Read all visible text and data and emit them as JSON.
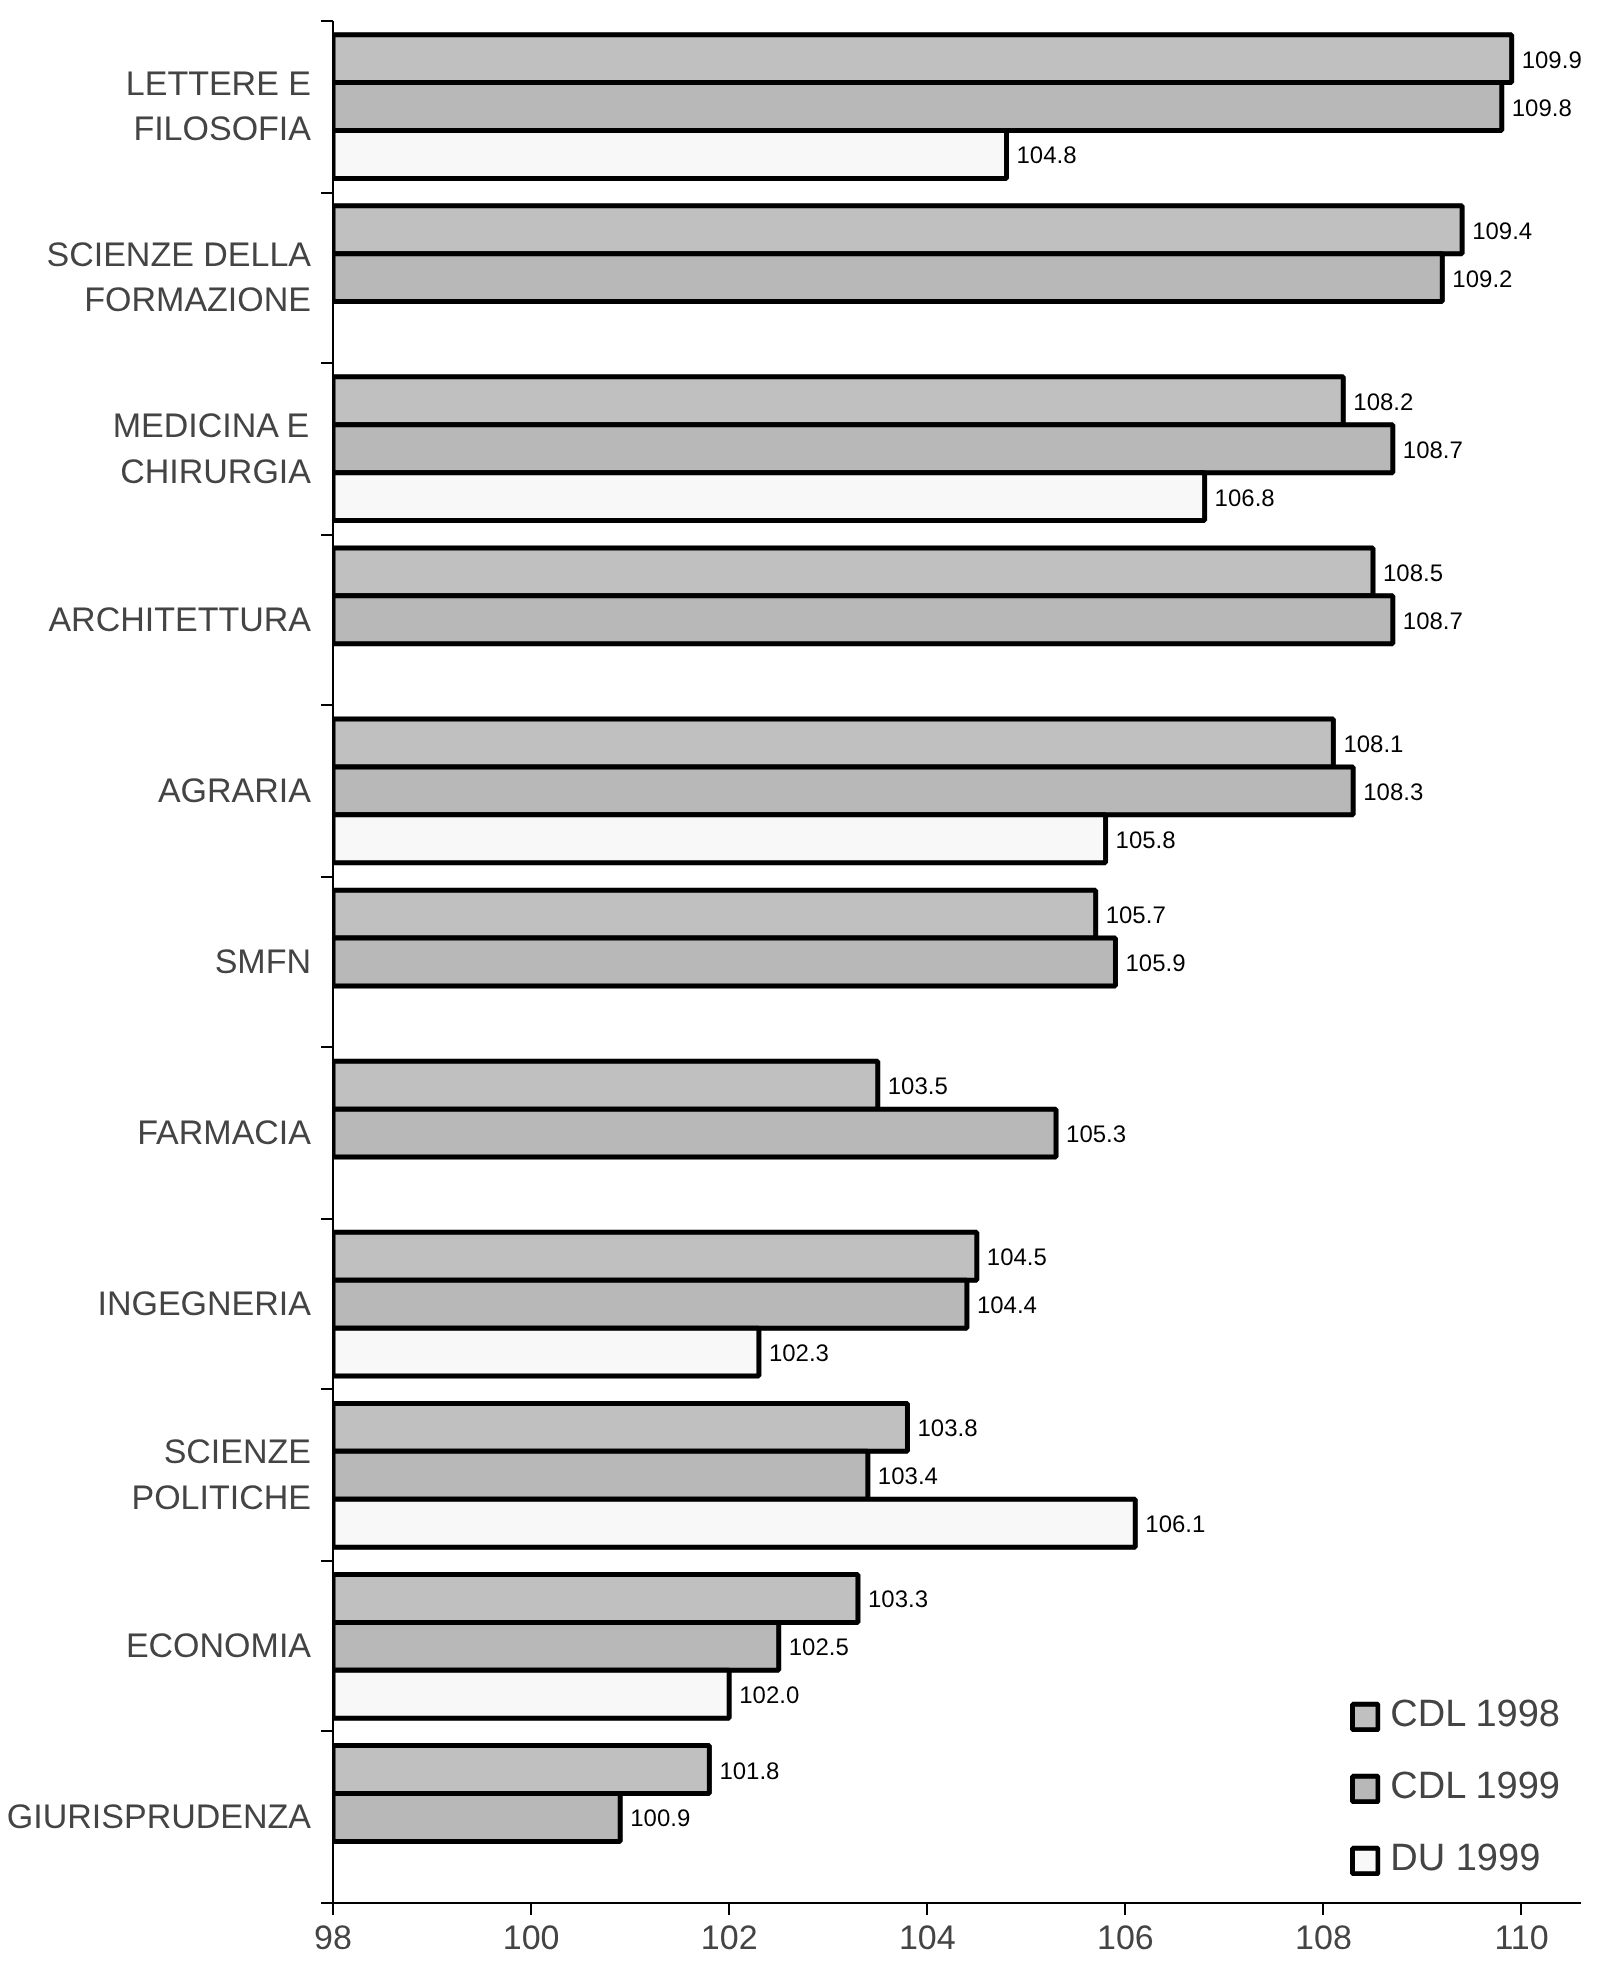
{
  "chart_data": {
    "type": "bar",
    "orientation": "horizontal",
    "categories": [
      "LETTERE E\nFILOSOFIA",
      "SCIENZE DELLA\nFORMAZIONE",
      "MEDICINA E\nCHIRURGIA",
      "ARCHITETTURA",
      "AGRARIA",
      "SMFN",
      "FARMACIA",
      "INGEGNERIA",
      "SCIENZE\nPOLITICHE",
      "ECONOMIA",
      "GIURISPRUDENZA"
    ],
    "series": [
      {
        "name": "CDL 1998",
        "color": "#c0c0c0",
        "values": [
          109.9,
          109.4,
          108.2,
          108.5,
          108.1,
          105.7,
          103.5,
          104.5,
          103.8,
          103.3,
          101.8
        ],
        "value_labels": [
          "109.9",
          "109.4",
          "108.2",
          "108.5",
          "108.1",
          "105.7",
          "103.5",
          "104.5",
          "103.8",
          "103.3",
          "101.8"
        ]
      },
      {
        "name": "CDL 1999",
        "color": "#b8b8b8",
        "values": [
          109.8,
          109.2,
          108.7,
          108.7,
          108.3,
          105.9,
          105.3,
          104.4,
          103.4,
          102.5,
          100.9
        ],
        "value_labels": [
          "109.8",
          "109.2",
          "108.7",
          "108.7",
          "108.3",
          "105.9",
          "105.3",
          "104.4",
          "103.4",
          "102.5",
          "100.9"
        ]
      },
      {
        "name": "DU 1999",
        "color": "#f8f8f8",
        "values": [
          104.8,
          null,
          106.8,
          null,
          105.8,
          null,
          null,
          102.3,
          106.1,
          102.0,
          null
        ],
        "value_labels": [
          "104.8",
          null,
          "106.8",
          null,
          "105.8",
          null,
          null,
          "102.3",
          "106.1",
          "102.0",
          null
        ]
      }
    ],
    "xlim": [
      98,
      110.6
    ],
    "xticks": [
      98,
      100,
      102,
      104,
      106,
      108,
      110
    ],
    "grid": false,
    "legend": "bottom right"
  }
}
